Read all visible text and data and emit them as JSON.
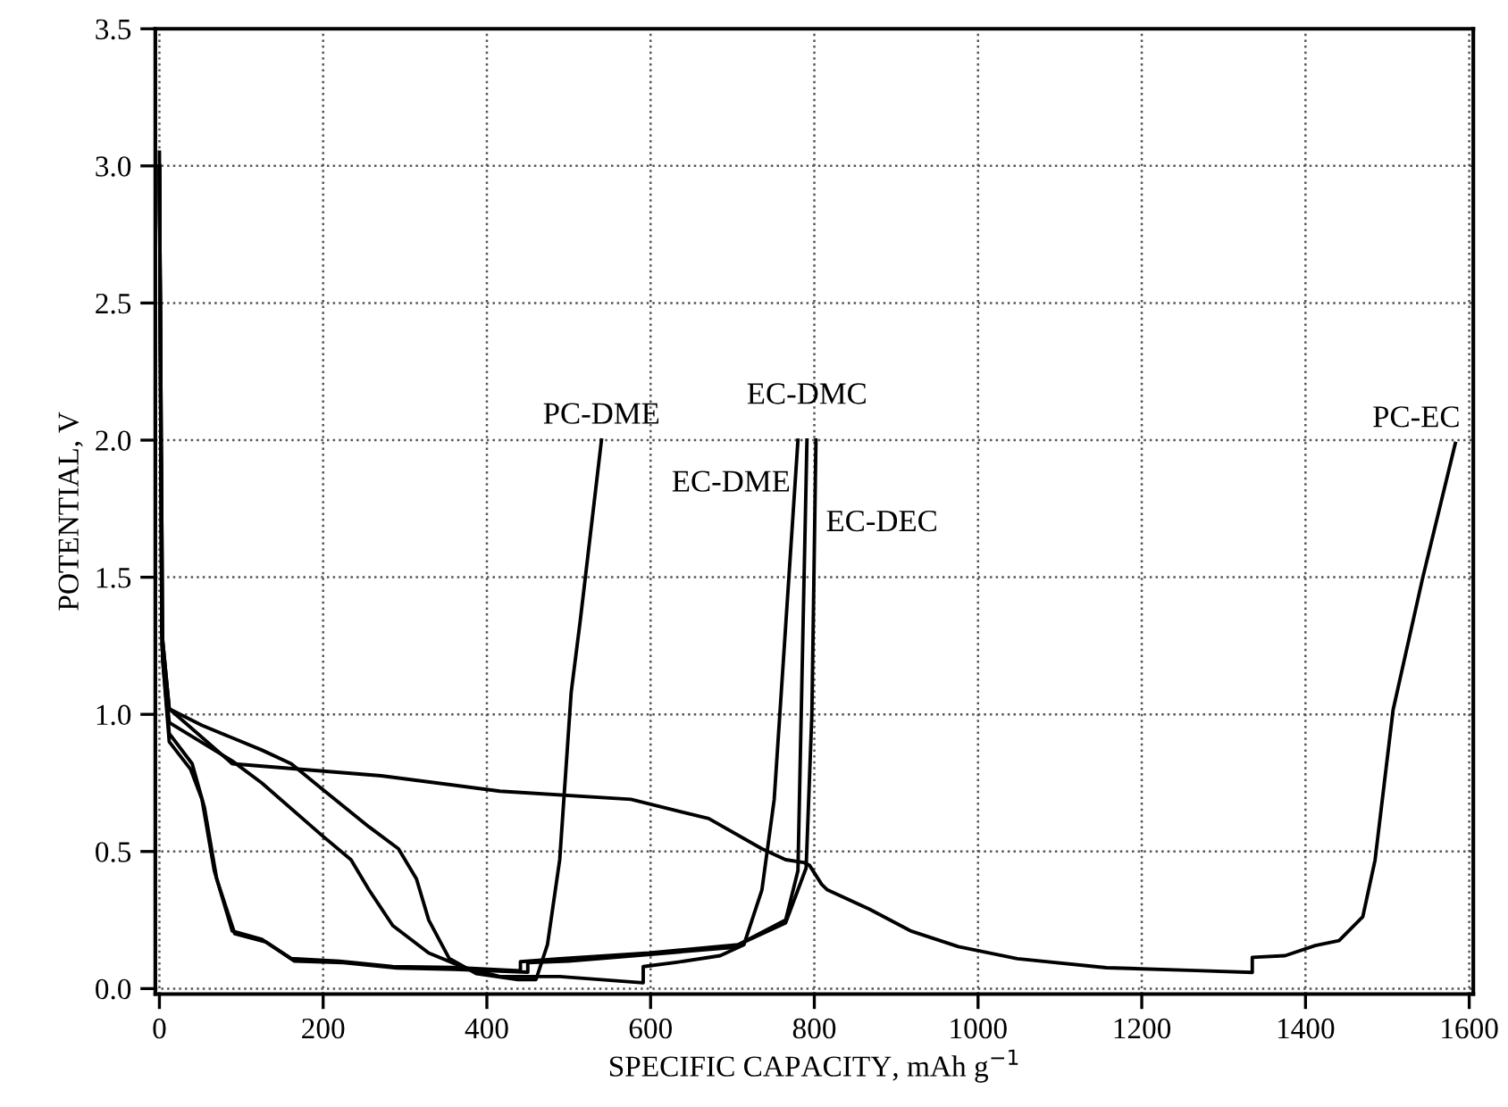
{
  "chart_data": {
    "type": "line",
    "xlabel": "SPECIFIC CAPACITY, mAh g$^{−1}$",
    "ylabel": "POTENTIAL, V",
    "xlim": [
      -5,
      1605
    ],
    "ylim": [
      -0.02,
      3.5
    ],
    "xticks": [
      0,
      200,
      400,
      600,
      800,
      1000,
      1200,
      1400,
      1600
    ],
    "yticks": [
      {
        "value": 0,
        "label": "0.0"
      },
      {
        "value": 0.5,
        "label": "0.5"
      },
      {
        "value": 1,
        "label": "1.0"
      },
      {
        "value": 1.5,
        "label": "1.5"
      },
      {
        "value": 2,
        "label": "2.0"
      },
      {
        "value": 2.5,
        "label": "2.5"
      },
      {
        "value": 3,
        "label": "3.0"
      },
      {
        "value": 3.5,
        "label": "3.5"
      }
    ],
    "grid": true,
    "legend": false,
    "marker": "none",
    "line_style": "solid",
    "series": [
      {
        "name": "PC-DME",
        "color": "#000000",
        "x": [
          0,
          3,
          12,
          52,
          125,
          161,
          198,
          256,
          292,
          314,
          329,
          354,
          387,
          438,
          460,
          474,
          489,
          503,
          514,
          540
        ],
        "values": [
          3.0,
          1.3,
          1.02,
          0.96,
          0.87,
          0.82,
          0.73,
          0.59,
          0.51,
          0.4,
          0.25,
          0.11,
          0.055,
          0.033,
          0.033,
          0.16,
          0.47,
          1.08,
          1.34,
          2.0
        ]
      },
      {
        "name": "EC-DME",
        "color": "#000000",
        "x": [
          0,
          3,
          12,
          89,
          125,
          198,
          234,
          256,
          285,
          329,
          373,
          416,
          489,
          591,
          591,
          634,
          685,
          714,
          736,
          751,
          780
        ],
        "values": [
          3.0,
          1.25,
          0.97,
          0.83,
          0.75,
          0.56,
          0.47,
          0.36,
          0.23,
          0.13,
          0.076,
          0.044,
          0.044,
          0.021,
          0.08,
          0.097,
          0.12,
          0.16,
          0.36,
          0.69,
          2.0
        ]
      },
      {
        "name": "EC-DMC",
        "color": "#000000",
        "x": [
          0,
          4,
          12,
          38,
          52,
          67,
          89,
          125,
          161,
          220,
          285,
          358,
          441,
          441,
          489,
          598,
          707,
          765,
          780,
          791
        ],
        "values": [
          3.0,
          1.2,
          0.9,
          0.8,
          0.69,
          0.43,
          0.21,
          0.18,
          0.11,
          0.1,
          0.08,
          0.077,
          0.065,
          0.098,
          0.109,
          0.13,
          0.16,
          0.25,
          0.43,
          2.0
        ]
      },
      {
        "name": "EC-DEC",
        "color": "#000000",
        "x": [
          0,
          4,
          12,
          40,
          55,
          70,
          92,
          130,
          165,
          225,
          290,
          360,
          450,
          450,
          500,
          600,
          700,
          765,
          790,
          797,
          802
        ],
        "values": [
          3.0,
          1.2,
          0.93,
          0.82,
          0.66,
          0.4,
          0.2,
          0.17,
          0.1,
          0.095,
          0.075,
          0.07,
          0.06,
          0.095,
          0.1,
          0.125,
          0.15,
          0.24,
          0.44,
          1.0,
          2.0
        ]
      },
      {
        "name": "PC-EC",
        "color": "#000000",
        "x": [
          0,
          3,
          12,
          89,
          271,
          416,
          576,
          671,
          736,
          765,
          787,
          794,
          809,
          816,
          867,
          918,
          976,
          1048,
          1157,
          1266,
          1335,
          1335,
          1375,
          1412,
          1441,
          1470,
          1485,
          1507,
          1543,
          1583
        ],
        "values": [
          3.05,
          1.3,
          1.02,
          0.82,
          0.776,
          0.72,
          0.69,
          0.62,
          0.51,
          0.47,
          0.46,
          0.45,
          0.38,
          0.36,
          0.29,
          0.21,
          0.153,
          0.109,
          0.076,
          0.066,
          0.059,
          0.114,
          0.12,
          0.157,
          0.175,
          0.262,
          0.469,
          1.016,
          1.496,
          1.988
        ]
      }
    ]
  }
}
